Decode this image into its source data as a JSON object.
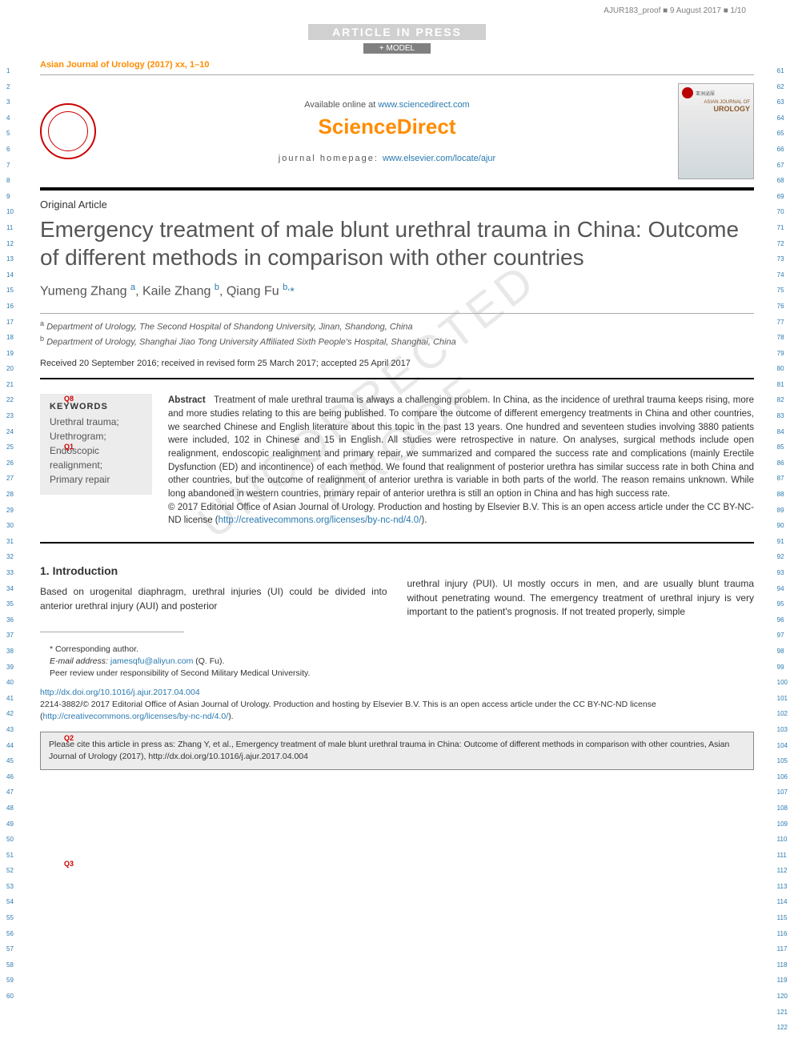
{
  "proof_stamp": "AJUR183_proof ■ 9 August 2017 ■ 1/10",
  "banners": {
    "aip": "ARTICLE IN PRESS",
    "model": "+ MODEL"
  },
  "journal_ref": "Asian Journal of Urology (2017) xx, 1–10",
  "header": {
    "available": "Available online at ",
    "available_url": "www.sciencedirect.com",
    "brand": "ScienceDirect",
    "homepage_label": "journal homepage: ",
    "homepage_url": "www.elsevier.com/locate/ajur",
    "cover_title_small": "ASIAN JOURNAL OF",
    "cover_title_big": "UROLOGY"
  },
  "article_type": "Original Article",
  "title": "Emergency treatment of male blunt urethral trauma in China: Outcome of different methods in comparison with other countries",
  "authors_html": {
    "a1_name": "Yumeng Zhang",
    "a1_sup": "a",
    "a2_name": "Kaile Zhang",
    "a2_sup": "b",
    "a3_name": "Qiang Fu",
    "a3_sup": "b,",
    "a3_ast": "*"
  },
  "affiliations": {
    "a": "Department of Urology, The Second Hospital of Shandong University, Jinan, Shandong, China",
    "b": "Department of Urology, Shanghai Jiao Tong University Affiliated Sixth People's Hospital, Shanghai, China"
  },
  "dates": "Received 20 September 2016; received in revised form 25 March 2017; accepted 25 April 2017",
  "keywords": {
    "heading": "KEYWORDS",
    "items": "Urethral trauma;\nUrethrogram;\nEndoscopic realignment;\nPrimary repair"
  },
  "abstract": {
    "label": "Abstract",
    "body": "Treatment of male urethral trauma is always a challenging problem. In China, as the incidence of urethral trauma keeps rising, more and more studies relating to this are being published. To compare the outcome of different emergency treatments in China and other countries, we searched Chinese and English literature about this topic in the past 13 years. One hundred and seventeen studies involving 3880 patients were included, 102 in Chinese and 15 in English. All studies were retrospective in nature. On analyses, surgical methods include open realignment, endoscopic realignment and primary repair, we summarized and compared the success rate and complications (mainly Erectile Dysfunction (ED) and incontinence) of each method. We found that realignment of posterior urethra has similar success rate in both China and other countries, but the outcome of realignment of anterior urethra is variable in both parts of the world. The reason remains unknown. While long abandoned in western countries, primary repair of anterior urethra is still an option in China and has high success rate.",
    "copyright": "© 2017 Editorial Office of Asian Journal of Urology. Production and hosting by Elsevier B.V. This is an open access article under the CC BY-NC-ND license (",
    "cc_url": "http://creativecommons.org/licenses/by-nc-nd/4.0/",
    "close": ")."
  },
  "section1_heading": "1. Introduction",
  "body": {
    "col1": "Based on urogenital diaphragm, urethral injuries (UI) could be divided into anterior urethral injury (AUI) and posterior",
    "col2": "urethral injury (PUI). UI mostly occurs in men, and are usually blunt trauma without penetrating wound. The emergency treatment of urethral injury is very important to the patient's prognosis. If not treated properly, simple"
  },
  "footnotes": {
    "corr": "* Corresponding author.",
    "email_label": "E-mail address: ",
    "email": "jamesqfu@aliyun.com",
    "email_after": " (Q. Fu).",
    "peer": "Peer review under responsibility of Second Military Medical University."
  },
  "doi": {
    "url": "http://dx.doi.org/10.1016/j.ajur.2017.04.004",
    "issn_line": "2214-3882/© 2017 Editorial Office of Asian Journal of Urology. Production and hosting by Elsevier B.V. This is an open access article under the CC BY-NC-ND license (",
    "cc_url": "http://creativecommons.org/licenses/by-nc-nd/4.0/",
    "close": ")."
  },
  "cite_box": "Please cite this article in press as: Zhang Y, et al., Emergency treatment of male blunt urethral trauma in China: Outcome of different methods in comparison with other countries, Asian Journal of Urology (2017), http://dx.doi.org/10.1016/j.ajur.2017.04.004",
  "queries": {
    "q8": "Q8",
    "q1": "Q1",
    "q2": "Q2",
    "q3": "Q3"
  },
  "watermark": "UNCORRECTED PROOF",
  "line_numbers": {
    "left_start": 1,
    "left_end": 60,
    "right_start": 61,
    "right_end": 122
  },
  "colors": {
    "orange": "#ff8c00",
    "link": "#2a7ab0",
    "query": "#c00",
    "gutter": "#2a7ab0",
    "bg_box": "#ececec",
    "seal": "#c00"
  },
  "fonts": {
    "title_size": 28,
    "body_size": 12,
    "abstract_size": 11.5
  }
}
